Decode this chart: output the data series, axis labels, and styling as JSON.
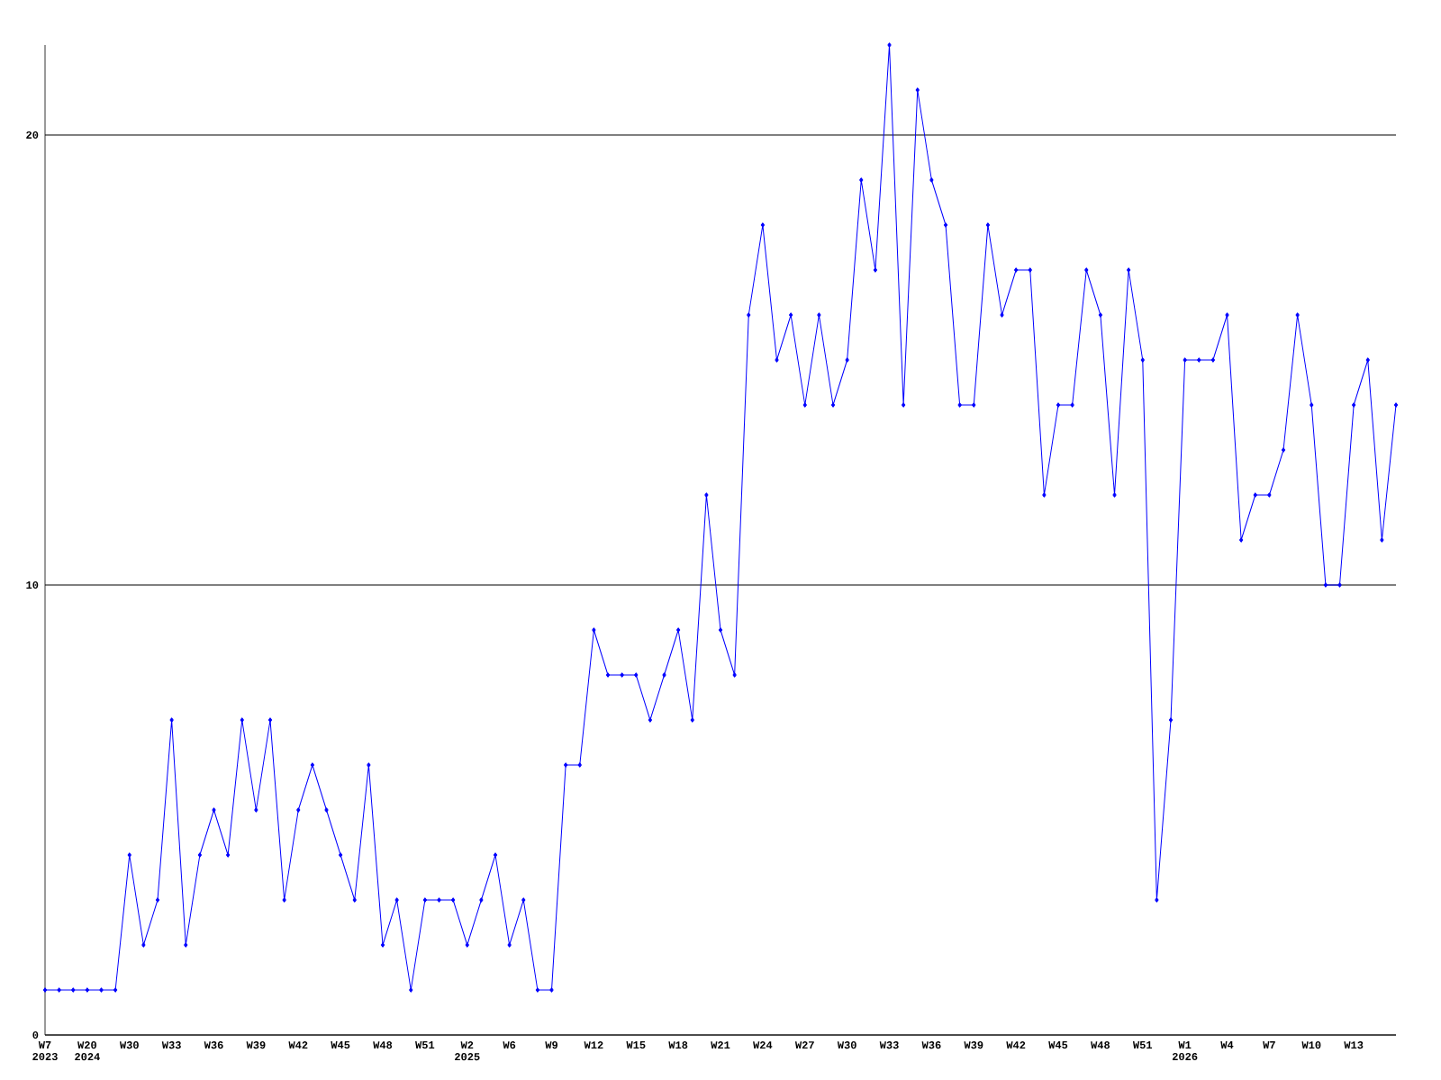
{
  "chart_data": {
    "type": "line",
    "categories": [
      "W7 2023",
      null,
      null,
      "W20 2024",
      null,
      null,
      "W30",
      null,
      null,
      "W33",
      null,
      null,
      "W36",
      null,
      null,
      "W39",
      null,
      null,
      "W42",
      null,
      null,
      "W45",
      null,
      null,
      "W48",
      null,
      null,
      "W51",
      null,
      null,
      "W2 2025",
      null,
      null,
      "W6",
      null,
      null,
      "W9",
      null,
      null,
      "W12",
      null,
      null,
      "W15",
      null,
      null,
      "W18",
      null,
      null,
      "W21",
      null,
      null,
      "W24",
      null,
      null,
      "W27",
      null,
      null,
      "W30",
      null,
      null,
      "W33",
      null,
      null,
      "W36",
      null,
      null,
      "W39",
      null,
      null,
      "W42",
      null,
      null,
      "W45",
      null,
      null,
      "W48",
      null,
      null,
      "W51",
      null,
      null,
      "W1 2026",
      null,
      null,
      "W4",
      null,
      null,
      "W7",
      null,
      null,
      "W10",
      null,
      null,
      "W13",
      null,
      null,
      null
    ],
    "values": [
      1,
      1,
      1,
      1,
      1,
      1,
      4,
      2,
      3,
      7,
      2,
      4,
      5,
      4,
      7,
      5,
      7,
      3,
      5,
      6,
      5,
      4,
      3,
      6,
      2,
      3,
      1,
      3,
      3,
      3,
      2,
      3,
      4,
      2,
      3,
      1,
      1,
      6,
      6,
      9,
      8,
      8,
      8,
      7,
      8,
      9,
      7,
      12,
      9,
      8,
      16,
      18,
      15,
      16,
      14,
      16,
      14,
      15,
      19,
      17,
      22,
      14,
      21,
      19,
      18,
      14,
      14,
      18,
      16,
      17,
      17,
      12,
      14,
      14,
      17,
      16,
      12,
      17,
      15,
      3,
      7,
      15,
      15,
      15,
      16,
      11,
      12,
      12,
      13,
      16,
      14,
      10,
      10,
      14,
      15,
      11,
      14
    ],
    "color": "#0000ff",
    "marker": "diamond",
    "grid": "y",
    "ylim": [
      0,
      22
    ],
    "yticks": [
      0,
      10,
      20
    ]
  }
}
